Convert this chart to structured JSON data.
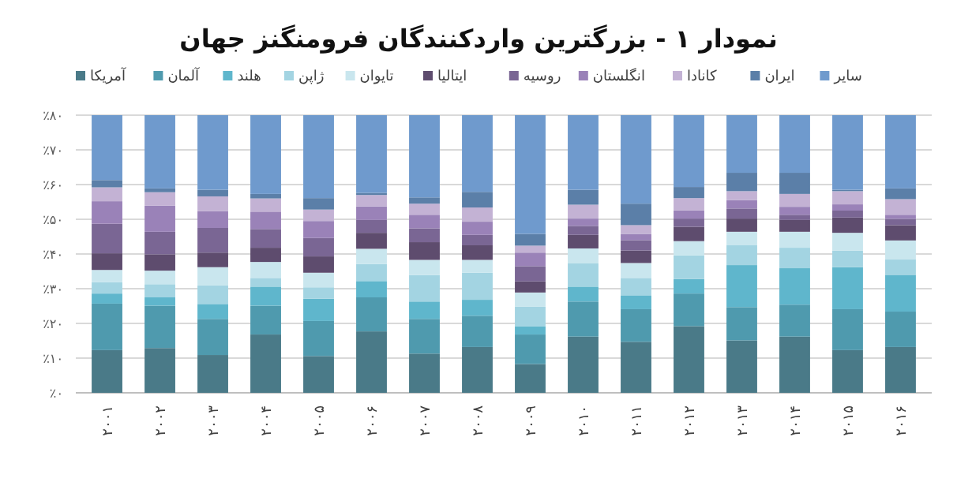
{
  "chart_data": {
    "type": "bar",
    "stacked": true,
    "title": "نمودار ۱ - بزرگترین واردکنندگان فرومنگنز جهان",
    "categories": [
      "۲۰۰۱",
      "۲۰۰۲",
      "۲۰۰۳",
      "۲۰۰۴",
      "۲۰۰۵",
      "۲۰۰۶",
      "۲۰۰۷",
      "۲۰۰۸",
      "۲۰۰۹",
      "۲۰۱۰",
      "۲۰۱۱",
      "۲۰۱۲",
      "۲۰۱۳",
      "۲۰۱۴",
      "۲۰۱۵",
      "۲۰۱۶"
    ],
    "ylim": [
      0,
      80
    ],
    "yticks": [
      {
        "value": 0,
        "label": "٪۰"
      },
      {
        "value": 10,
        "label": "٪۱۰"
      },
      {
        "value": 20,
        "label": "٪۲۰"
      },
      {
        "value": 30,
        "label": "٪۳۰"
      },
      {
        "value": 40,
        "label": "٪۴۰"
      },
      {
        "value": 50,
        "label": "٪۵۰"
      },
      {
        "value": 60,
        "label": "٪۶۰"
      },
      {
        "value": 70,
        "label": "٪۷۰"
      },
      {
        "value": 80,
        "label": "٪۸۰"
      }
    ],
    "grid": "y",
    "legend": "top",
    "series": [
      {
        "name": "آمریکا",
        "color": "#4a7a88",
        "values": [
          12.3,
          12.9,
          10.9,
          16.8,
          10.6,
          17.7,
          11.3,
          13.2,
          8.3,
          16.2,
          14.7,
          19.2,
          15.1,
          16.2,
          12.3,
          13.2
        ]
      },
      {
        "name": "آلمان",
        "color": "#4f9aae",
        "values": [
          13.4,
          12.2,
          10.4,
          8.3,
          10.1,
          9.8,
          10.0,
          9.0,
          8.5,
          10.1,
          9.4,
          9.4,
          9.6,
          9.2,
          11.8,
          10.2
        ]
      },
      {
        "name": "هلند",
        "color": "#5fb6cc",
        "values": [
          2.9,
          2.4,
          4.3,
          5.5,
          6.4,
          4.7,
          5.0,
          4.6,
          2.4,
          4.3,
          4.0,
          4.2,
          12.1,
          10.5,
          12.1,
          10.6
        ]
      },
      {
        "name": "ژاپن",
        "color": "#a3d4e2",
        "values": [
          3.3,
          3.8,
          5.4,
          2.5,
          3.3,
          4.9,
          7.6,
          7.8,
          5.6,
          6.8,
          5.0,
          6.8,
          5.7,
          5.9,
          4.8,
          4.4
        ]
      },
      {
        "name": "تایوان",
        "color": "#c9e6ee",
        "values": [
          3.5,
          3.9,
          5.2,
          4.6,
          4.2,
          4.4,
          4.4,
          3.7,
          4.1,
          4.2,
          4.3,
          4.1,
          3.9,
          4.6,
          5.1,
          5.5
        ]
      },
      {
        "name": "ایتالیا",
        "color": "#5e4c6e",
        "values": [
          4.8,
          4.7,
          4.2,
          4.1,
          4.7,
          4.6,
          5.1,
          4.2,
          3.2,
          3.9,
          3.6,
          4.1,
          3.8,
          3.4,
          4.4,
          4.4
        ]
      },
      {
        "name": "روسیه",
        "color": "#7a6694",
        "values": [
          8.5,
          6.5,
          7.1,
          5.4,
          5.3,
          3.7,
          4.0,
          3.0,
          4.4,
          2.6,
          3.0,
          2.4,
          2.9,
          1.5,
          2.0,
          1.8
        ]
      },
      {
        "name": "انگلستان",
        "color": "#9a82b8",
        "values": [
          6.5,
          7.5,
          4.8,
          5.0,
          4.9,
          3.9,
          3.9,
          3.8,
          3.9,
          2.1,
          1.8,
          2.4,
          2.4,
          2.3,
          1.8,
          1.2
        ]
      },
      {
        "name": "کانادا",
        "color": "#c3b2d4",
        "values": [
          4.0,
          3.9,
          4.3,
          3.8,
          3.3,
          3.3,
          3.2,
          4.1,
          2.0,
          4.0,
          2.5,
          3.5,
          2.6,
          3.7,
          3.8,
          4.5
        ]
      },
      {
        "name": "ایران",
        "color": "#5b7fa8",
        "values": [
          2.1,
          1.1,
          1.9,
          1.3,
          3.3,
          0.6,
          1.8,
          4.5,
          3.4,
          4.3,
          6.2,
          3.2,
          5.3,
          6.1,
          0.4,
          3.1
        ]
      },
      {
        "name": "سایر",
        "color": "#6f9acd",
        "values": [
          18.7,
          21.1,
          21.5,
          22.7,
          23.9,
          22.4,
          23.7,
          22.1,
          34.2,
          21.5,
          25.5,
          20.7,
          16.6,
          16.6,
          21.5,
          21.1
        ]
      }
    ]
  }
}
